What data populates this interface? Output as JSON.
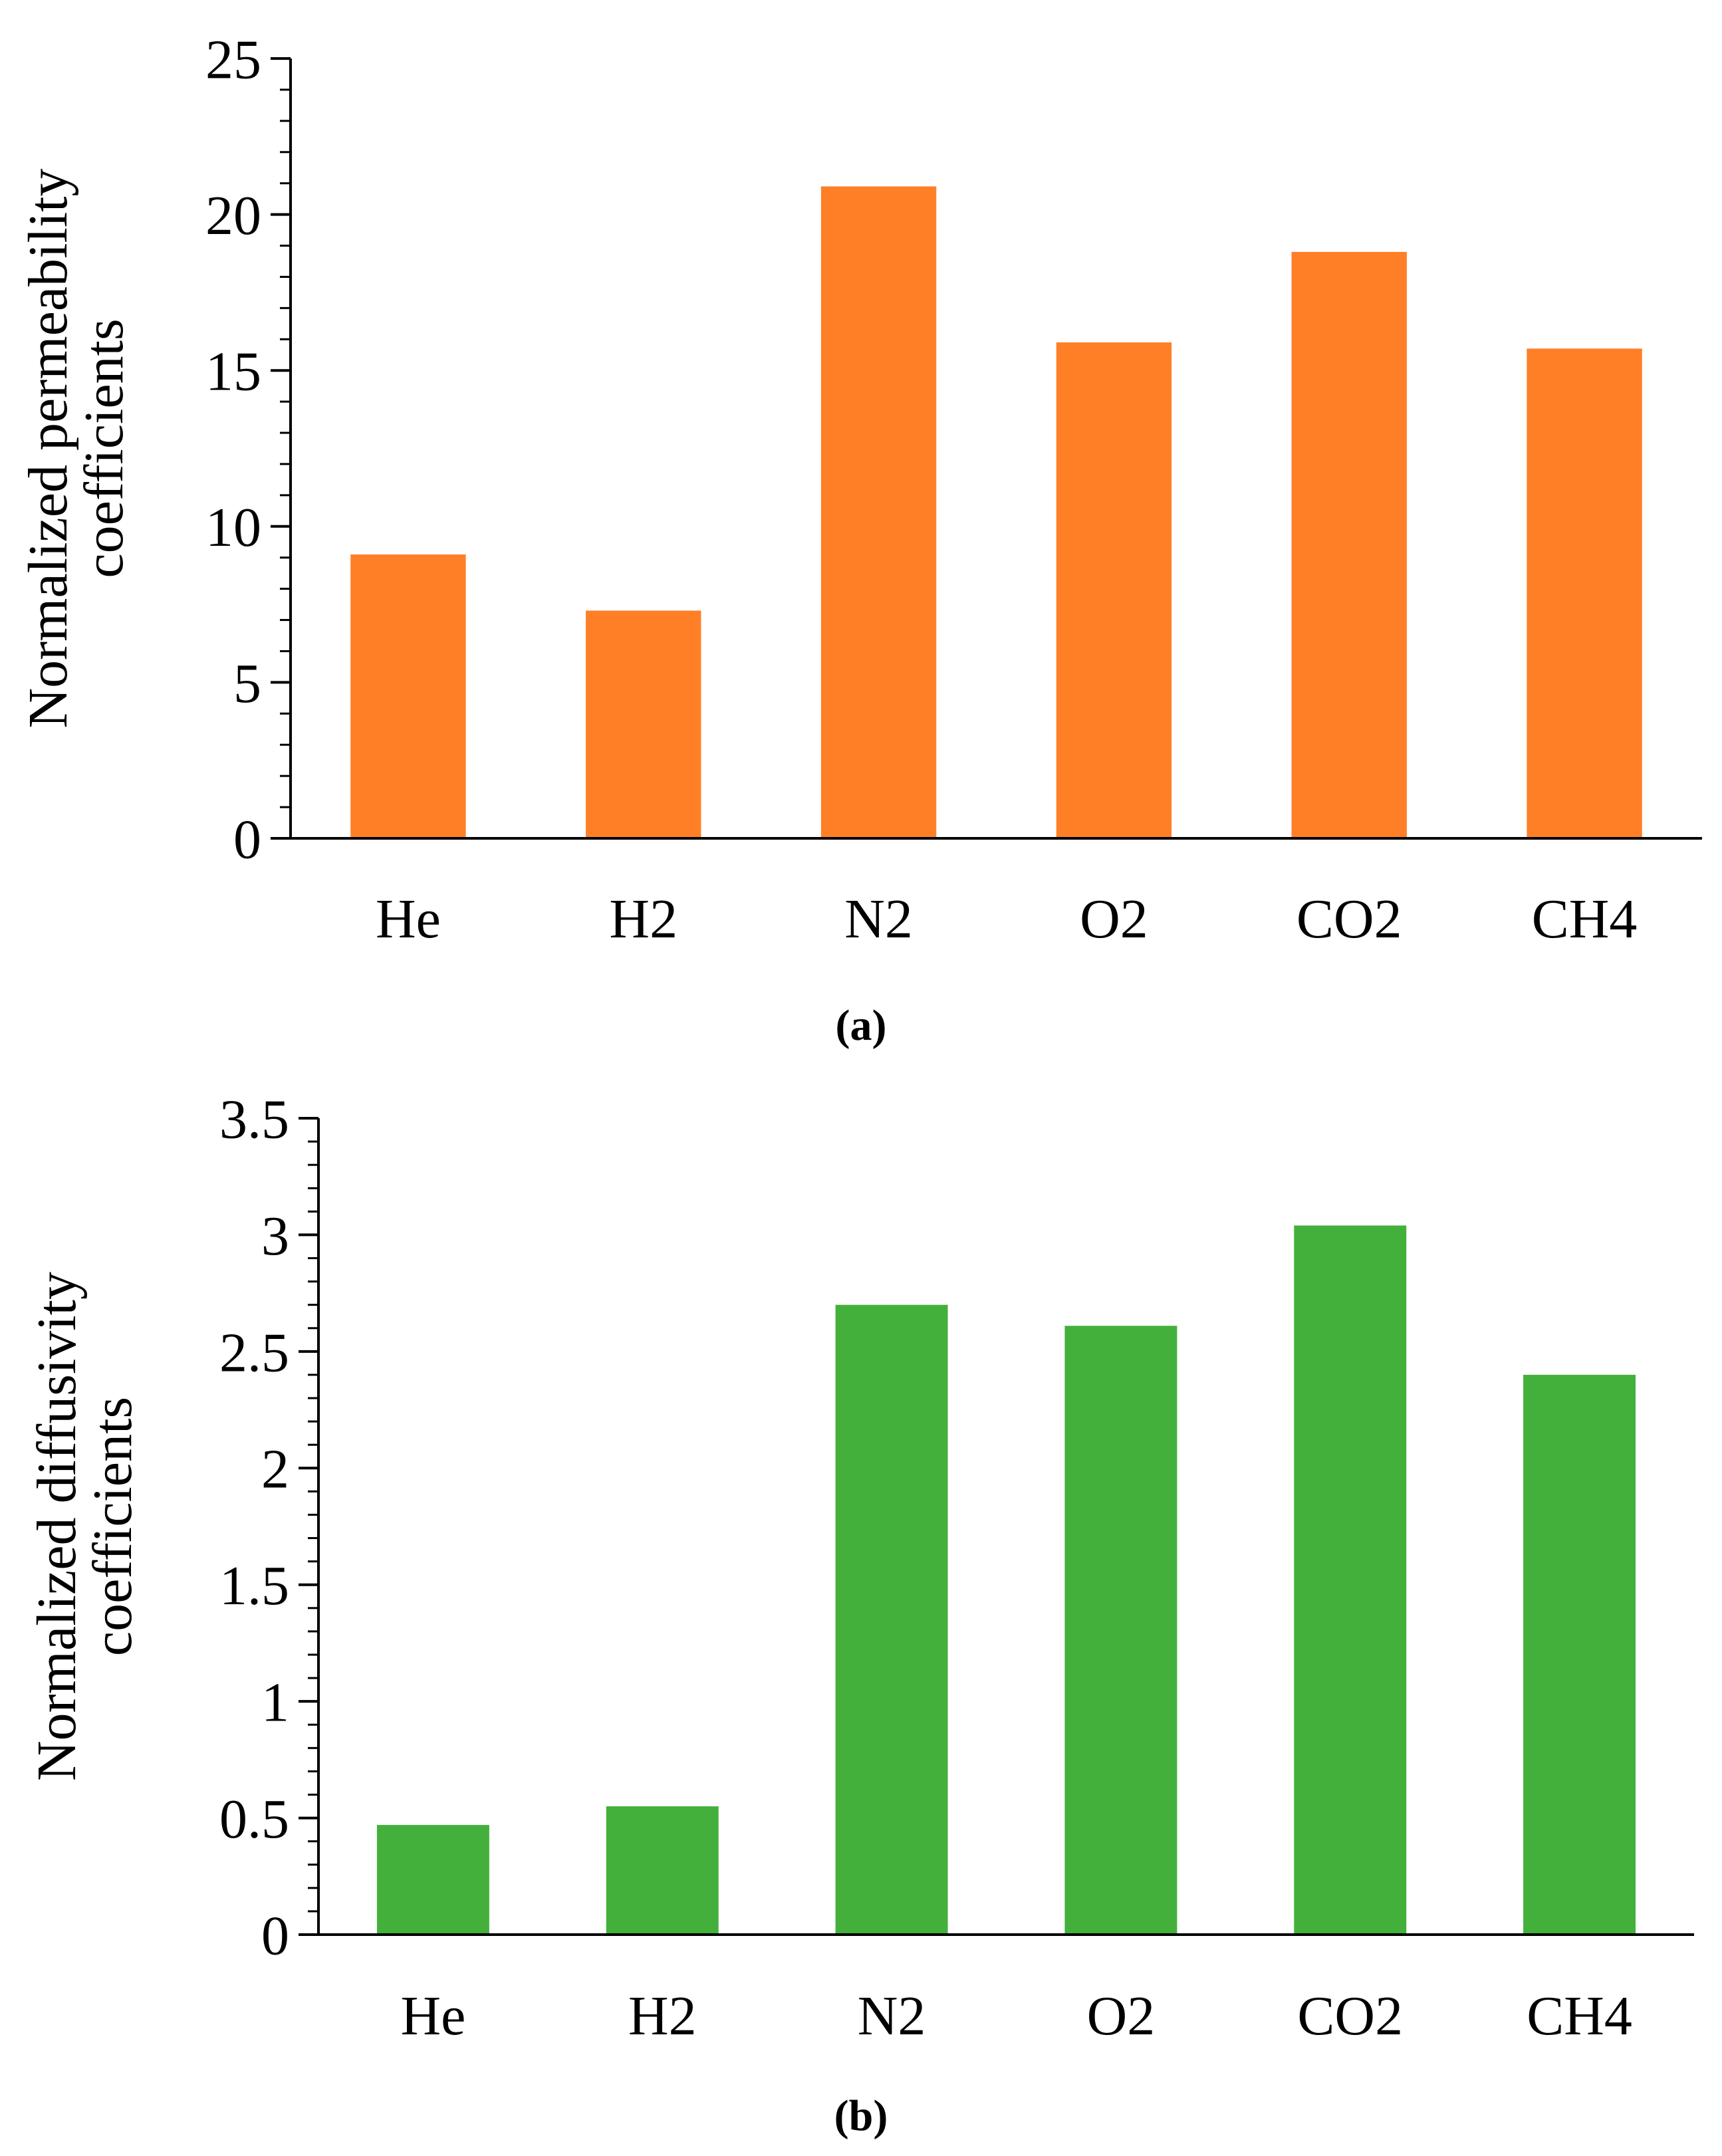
{
  "chart_data": [
    {
      "type": "bar",
      "panel_label": "(a)",
      "title": "",
      "xlabel": "",
      "ylabel_lines": [
        "Normalized permeability",
        "coefficients"
      ],
      "categories": [
        "He",
        "H2",
        "N2",
        "O2",
        "CO2",
        "CH4"
      ],
      "values": [
        9.1,
        7.3,
        20.9,
        15.9,
        18.8,
        15.7
      ],
      "ylim": [
        0,
        25
      ],
      "yticks": [
        0,
        5,
        10,
        15,
        20,
        25
      ],
      "ytick_labels": [
        "0",
        "5",
        "10",
        "15",
        "20",
        "25"
      ],
      "minor_ticks_per_major": 5,
      "bar_color": "#FF7F27",
      "grid": false,
      "legend": "none"
    },
    {
      "type": "bar",
      "panel_label": "(b)",
      "title": "",
      "xlabel": "",
      "ylabel_lines": [
        "Normalized diffusivity",
        "coefficients"
      ],
      "categories": [
        "He",
        "H2",
        "N2",
        "O2",
        "CO2",
        "CH4"
      ],
      "values": [
        0.47,
        0.55,
        2.7,
        2.61,
        3.04,
        2.4
      ],
      "ylim": [
        0,
        3.5
      ],
      "yticks": [
        0,
        0.5,
        1,
        1.5,
        2,
        2.5,
        3,
        3.5
      ],
      "ytick_labels": [
        "0",
        "0.5",
        "1",
        "1.5",
        "2",
        "2.5",
        "3",
        "3.5"
      ],
      "minor_ticks_per_major": 5,
      "bar_color": "#44B03C",
      "grid": false,
      "legend": "none"
    }
  ]
}
